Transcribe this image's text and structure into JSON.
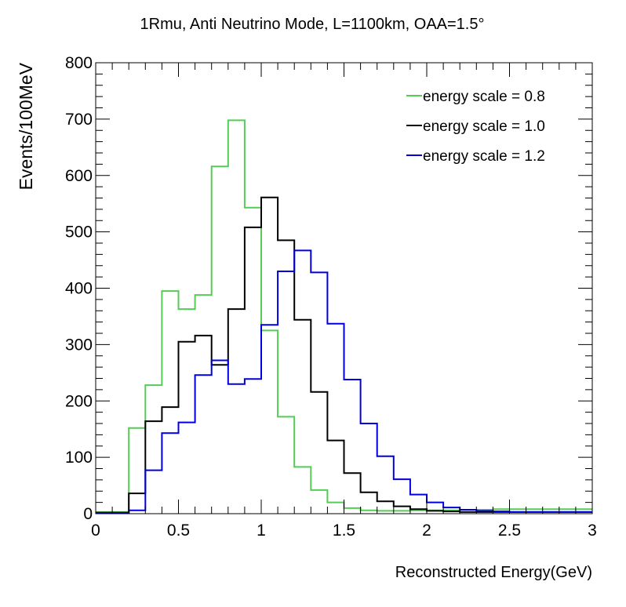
{
  "chart_data": {
    "type": "line",
    "title": "1Rmu, Anti Neutrino Mode, L=1100km, OAA=1.5°",
    "xlabel": "Reconstructed Energy(GeV)",
    "ylabel": "Events/100MeV",
    "xlim": [
      0,
      3
    ],
    "ylim": [
      0,
      800
    ],
    "bin_width": 0.1,
    "x_ticks": [
      "0",
      "0.5",
      "1",
      "1.5",
      "2",
      "2.5",
      "3"
    ],
    "y_ticks": [
      "0",
      "100",
      "200",
      "300",
      "400",
      "500",
      "600",
      "700",
      "800"
    ],
    "legend_position": "top-right",
    "grid": false,
    "series": [
      {
        "name": "energy scale = 0.8",
        "color": "#55cc55",
        "values": [
          3,
          3,
          152,
          228,
          395,
          363,
          388,
          616,
          698,
          543,
          325,
          172,
          83,
          42,
          20,
          10,
          6,
          5,
          5,
          6,
          6,
          6,
          7,
          7,
          8,
          8,
          8,
          8,
          8,
          8
        ]
      },
      {
        "name": "energy scale = 1.0",
        "color": "#000000",
        "values": [
          2,
          2,
          36,
          164,
          189,
          305,
          316,
          264,
          363,
          508,
          561,
          485,
          344,
          216,
          130,
          72,
          38,
          22,
          13,
          8,
          5,
          4,
          3,
          3,
          3,
          3,
          3,
          3,
          3,
          3
        ]
      },
      {
        "name": "energy scale = 1.2",
        "color": "#0000dd",
        "values": [
          1,
          1,
          6,
          77,
          143,
          162,
          246,
          272,
          230,
          239,
          335,
          430,
          467,
          428,
          337,
          238,
          160,
          102,
          61,
          34,
          20,
          11,
          7,
          5,
          4,
          3,
          3,
          3,
          3,
          3
        ]
      }
    ]
  }
}
